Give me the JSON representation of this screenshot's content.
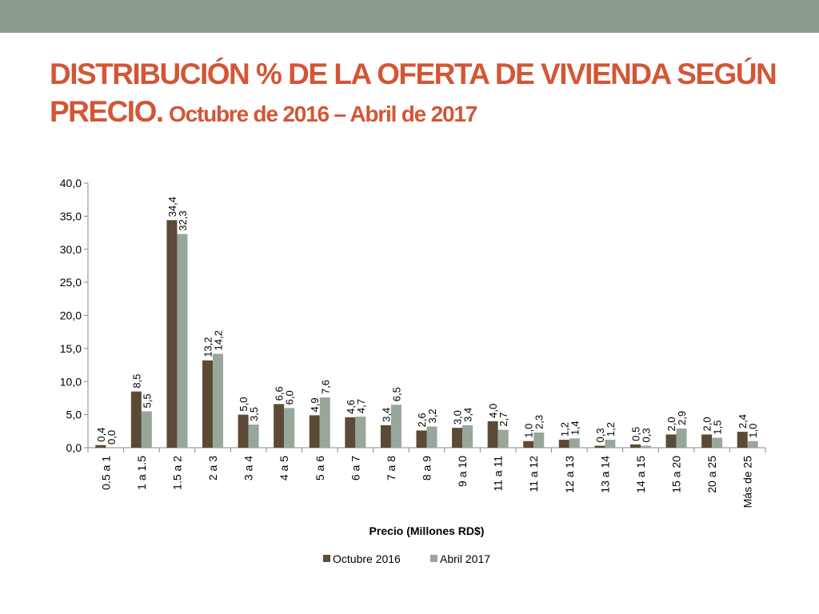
{
  "slide": {
    "title_main": "DISTRIBUCIÓN % DE LA OFERTA DE VIVIENDA SEGÚN PRECIO.",
    "title_sub": "Octubre de 2016 – Abril de 2017"
  },
  "colors": {
    "top_bar": "#8c9b8e",
    "title": "#d35635",
    "series_1": "#5b4a35",
    "series_2": "#97a79b"
  },
  "chart_data": {
    "type": "bar",
    "title": "",
    "xlabel": "Precio (Millones RD$)",
    "ylabel": "",
    "ylim": [
      0,
      40
    ],
    "yticks": [
      "0,0",
      "5,0",
      "10,0",
      "15,0",
      "20,0",
      "25,0",
      "30,0",
      "35,0",
      "40,0"
    ],
    "grid": false,
    "legend_position": "bottom",
    "categories": [
      "0.5 a 1",
      "1 a 1.5",
      "1.5 a 2",
      "2 a 3",
      "3 a 4",
      "4 a 5",
      "5 a 6",
      "6 a 7",
      "7 a 8",
      "8 a 9",
      "9 a 10",
      "11 a 11",
      "11 a 12",
      "12 a 13",
      "13 a 14",
      "14 a 15",
      "15 a 20",
      "20 a 25",
      "Más de 25"
    ],
    "series": [
      {
        "name": "Octubre 2016",
        "values": [
          0.4,
          8.5,
          34.4,
          13.2,
          5.0,
          6.6,
          4.9,
          4.6,
          3.4,
          2.6,
          3.0,
          4.0,
          1.0,
          1.2,
          0.3,
          0.5,
          2.0,
          2.0,
          2.4
        ],
        "labels": [
          "0,4",
          "8,5",
          "34,4",
          "13,2",
          "5,0",
          "6,6",
          "4,9",
          "4,6",
          "3,4",
          "2,6",
          "3,0",
          "4,0",
          "1,0",
          "1,2",
          "0,3",
          "0,5",
          "2,0",
          "2,0",
          "2,4"
        ]
      },
      {
        "name": "Abril 2017",
        "values": [
          0.0,
          5.5,
          32.3,
          14.2,
          3.5,
          6.0,
          7.6,
          4.7,
          6.5,
          3.2,
          3.4,
          2.7,
          2.3,
          1.4,
          1.2,
          0.3,
          2.9,
          1.5,
          1.0
        ],
        "labels": [
          "0,0",
          "5,5",
          "32,3",
          "14,2",
          "3,5",
          "6,0",
          "7,6",
          "4,7",
          "6,5",
          "3,2",
          "3,4",
          "2,7",
          "2,3",
          "1,4",
          "1,2",
          "0,3",
          "2,9",
          "1,5",
          "1,0"
        ]
      }
    ]
  }
}
